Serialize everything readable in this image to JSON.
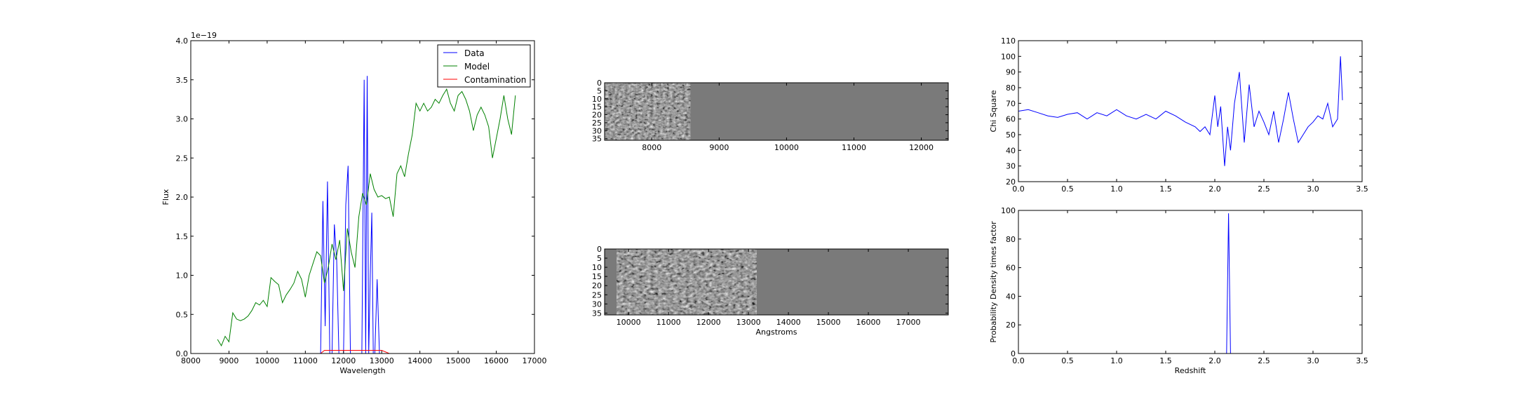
{
  "chart_data": [
    {
      "type": "line",
      "xlabel": "Wavelength",
      "ylabel": "Flux",
      "offset_text": "1e−19",
      "xlim": [
        8000,
        17000
      ],
      "ylim": [
        0,
        4.0
      ],
      "x_ticks": [
        "8000",
        "9000",
        "10000",
        "11000",
        "12000",
        "13000",
        "14000",
        "15000",
        "16000",
        "17000"
      ],
      "y_ticks": [
        "0.0",
        "0.5",
        "1.0",
        "1.5",
        "2.0",
        "2.5",
        "3.0",
        "3.5",
        "4.0"
      ],
      "legend": {
        "placement": "top-right",
        "entries": [
          "Data",
          "Model",
          "Contamination"
        ]
      },
      "series": [
        {
          "name": "Data",
          "color": "#0000ff",
          "x": [
            11400,
            11460,
            11520,
            11580,
            11640,
            11700,
            11760,
            11820,
            11880,
            11940,
            12000,
            12060,
            12120,
            12180,
            12240,
            12300,
            12360,
            12420,
            12480,
            12540,
            12580,
            12620,
            12660,
            12700,
            12740,
            12780,
            12820,
            12880,
            12940,
            13000,
            13060,
            13100
          ],
          "y": [
            0.0,
            1.95,
            0.35,
            2.2,
            0.0,
            0.0,
            1.65,
            1.2,
            0.0,
            0.0,
            0.0,
            1.9,
            2.4,
            0.0,
            0.0,
            0.0,
            0.0,
            0.0,
            0.0,
            3.5,
            0.0,
            3.55,
            0.0,
            1.0,
            1.8,
            0.0,
            0.0,
            0.95,
            0.0,
            0.0,
            0.0,
            0.0
          ]
        },
        {
          "name": "Model",
          "color": "#008000",
          "x": [
            8700,
            8800,
            8900,
            9000,
            9100,
            9200,
            9300,
            9400,
            9500,
            9600,
            9700,
            9800,
            9900,
            10000,
            10100,
            10200,
            10300,
            10400,
            10500,
            10600,
            10700,
            10800,
            10900,
            11000,
            11100,
            11200,
            11300,
            11400,
            11500,
            11600,
            11700,
            11800,
            11900,
            12000,
            12100,
            12200,
            12300,
            12400,
            12500,
            12600,
            12700,
            12800,
            12900,
            13000,
            13100,
            13200,
            13300,
            13400,
            13500,
            13600,
            13700,
            13800,
            13900,
            14000,
            14100,
            14200,
            14300,
            14400,
            14500,
            14600,
            14700,
            14800,
            14900,
            15000,
            15100,
            15200,
            15300,
            15400,
            15500,
            15600,
            15700,
            15800,
            15900,
            16000,
            16100,
            16200,
            16300,
            16400,
            16500
          ],
          "y": [
            0.18,
            0.1,
            0.22,
            0.15,
            0.52,
            0.44,
            0.42,
            0.44,
            0.48,
            0.55,
            0.65,
            0.62,
            0.68,
            0.6,
            0.97,
            0.92,
            0.88,
            0.65,
            0.75,
            0.82,
            0.9,
            1.05,
            0.95,
            0.72,
            1.0,
            1.15,
            1.3,
            1.25,
            0.9,
            1.1,
            1.4,
            1.2,
            1.45,
            0.8,
            1.6,
            1.3,
            1.1,
            1.75,
            2.05,
            1.9,
            2.3,
            2.1,
            2.0,
            2.02,
            1.98,
            2.0,
            1.75,
            2.3,
            2.4,
            2.26,
            2.55,
            2.8,
            3.2,
            3.1,
            3.2,
            3.1,
            3.15,
            3.25,
            3.2,
            3.3,
            3.38,
            3.2,
            3.1,
            3.3,
            3.35,
            3.25,
            3.1,
            2.85,
            3.05,
            3.15,
            3.05,
            2.9,
            2.5,
            2.75,
            3.0,
            3.3,
            3.0,
            2.8,
            3.3
          ]
        },
        {
          "name": "Contamination",
          "color": "#ff0000",
          "x": [
            8700,
            11000,
            11400,
            11500,
            12000,
            12500,
            13000,
            13200,
            14000,
            15000,
            16000,
            16500
          ],
          "y": [
            0.0,
            0.0,
            0.0,
            0.04,
            0.04,
            0.04,
            0.04,
            0.0,
            0.0,
            0.0,
            0.0,
            0.0
          ]
        }
      ]
    },
    {
      "type": "heatmap",
      "xlim": [
        7300,
        12400
      ],
      "ylim": [
        36,
        0
      ],
      "data_extent": [
        7300,
        8570
      ],
      "x_ticks": [
        "8000",
        "9000",
        "10000",
        "11000",
        "12000"
      ],
      "y_ticks": [
        "0",
        "5",
        "10",
        "15",
        "20",
        "25",
        "30",
        "35"
      ]
    },
    {
      "type": "heatmap",
      "xlabel": "Angstroms",
      "xlim": [
        9400,
        18000
      ],
      "ylim": [
        36,
        0
      ],
      "data_extent": [
        9700,
        13200
      ],
      "x_ticks": [
        "10000",
        "11000",
        "12000",
        "13000",
        "14000",
        "15000",
        "16000",
        "17000"
      ],
      "y_ticks": [
        "0",
        "5",
        "10",
        "15",
        "20",
        "25",
        "30",
        "35"
      ]
    },
    {
      "type": "line",
      "ylabel": "Chi Square",
      "xlim": [
        0.0,
        3.5
      ],
      "ylim": [
        20,
        110
      ],
      "x_ticks": [
        "0.0",
        "0.5",
        "1.0",
        "1.5",
        "2.0",
        "2.5",
        "3.0",
        "3.5"
      ],
      "y_ticks": [
        "20",
        "30",
        "40",
        "50",
        "60",
        "70",
        "80",
        "90",
        "100",
        "110"
      ],
      "series": [
        {
          "color": "#0000ff",
          "x": [
            0.0,
            0.1,
            0.2,
            0.3,
            0.4,
            0.5,
            0.6,
            0.7,
            0.8,
            0.9,
            1.0,
            1.1,
            1.2,
            1.3,
            1.4,
            1.5,
            1.6,
            1.7,
            1.8,
            1.85,
            1.9,
            1.95,
            2.0,
            2.03,
            2.06,
            2.1,
            2.13,
            2.16,
            2.2,
            2.25,
            2.3,
            2.35,
            2.4,
            2.45,
            2.5,
            2.55,
            2.6,
            2.65,
            2.7,
            2.75,
            2.8,
            2.85,
            2.9,
            2.95,
            3.0,
            3.05,
            3.1,
            3.15,
            3.2,
            3.25,
            3.28,
            3.3
          ],
          "y": [
            65,
            66,
            64,
            62,
            61,
            63,
            64,
            60,
            64,
            62,
            66,
            62,
            60,
            63,
            60,
            65,
            62,
            58,
            55,
            52,
            55,
            50,
            75,
            55,
            68,
            30,
            55,
            40,
            70,
            90,
            45,
            82,
            55,
            65,
            58,
            50,
            65,
            45,
            60,
            77,
            60,
            45,
            50,
            55,
            58,
            62,
            60,
            70,
            55,
            60,
            100,
            72
          ]
        }
      ]
    },
    {
      "type": "line",
      "xlabel": "Redshift",
      "ylabel": "Probability Density times factor",
      "xlim": [
        0.0,
        3.5
      ],
      "ylim": [
        0,
        100
      ],
      "x_ticks": [
        "0.0",
        "0.5",
        "1.0",
        "1.5",
        "2.0",
        "2.5",
        "3.0",
        "3.5"
      ],
      "y_ticks": [
        "0",
        "20",
        "40",
        "60",
        "80",
        "100"
      ],
      "series": [
        {
          "color": "#0000ff",
          "x": [
            0.0,
            2.1,
            2.12,
            2.14,
            2.16,
            2.18,
            3.32
          ],
          "y": [
            0,
            0,
            0,
            98,
            0,
            0,
            0
          ]
        }
      ]
    }
  ]
}
